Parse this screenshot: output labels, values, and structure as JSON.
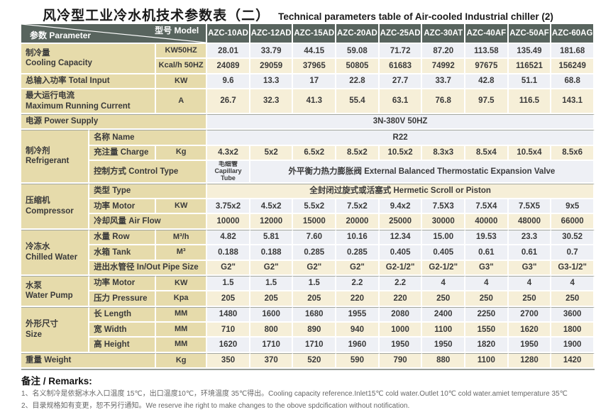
{
  "page": {
    "title_zh": "风冷型工业冷水机技术参数表（二）",
    "title_en": "Technical parameters table of Air-cooled Industrial chiller (2)"
  },
  "colors": {
    "header_bg": "#58645e",
    "label_bg": "#e6dbab",
    "row_light": "#eef0f5",
    "row_cream": "#f6efd8"
  },
  "table": {
    "corner": {
      "param_zh": "参数",
      "param_en": "Parameter",
      "model_zh": "型号",
      "model_en": "Model"
    },
    "models": [
      "AZC-10AD",
      "AZC-12AD",
      "AZC-15AD",
      "AZC-20AD",
      "AZC-25AD",
      "AZC-30AT",
      "AZC-40AF",
      "AZC-50AF",
      "AZC-60AG"
    ],
    "rows": [
      {
        "tint": "a",
        "sec": false,
        "cells": [
          {
            "t": "制冷量\nCooling Capacity",
            "cls": "label",
            "cs": 2,
            "rs": 2
          },
          {
            "t": "KW50HZ",
            "cls": "unit"
          },
          "28.01",
          "33.79",
          "44.15",
          "59.08",
          "71.72",
          "87.20",
          "113.58",
          "135.49",
          "181.68"
        ]
      },
      {
        "tint": "b",
        "sec": false,
        "cells": [
          {
            "t": "Kcal/h 50HZ",
            "cls": "unit"
          },
          "24089",
          "29059",
          "37965",
          "50805",
          "61683",
          "74992",
          "97675",
          "116521",
          "156249"
        ]
      },
      {
        "tint": "a",
        "sec": false,
        "cells": [
          {
            "t": "总输入功率 Total Input",
            "cls": "label",
            "cs": 2
          },
          {
            "t": "KW",
            "cls": "unit"
          },
          "9.6",
          "13.3",
          "17",
          "22.8",
          "27.7",
          "33.7",
          "42.8",
          "51.1",
          "68.8"
        ]
      },
      {
        "tint": "b",
        "sec": false,
        "cells": [
          {
            "t": "最大运行电流\nMaximum Running Current",
            "cls": "label",
            "cs": 2
          },
          {
            "t": "A",
            "cls": "unit"
          },
          "26.7",
          "32.3",
          "41.3",
          "55.4",
          "63.1",
          "76.8",
          "97.5",
          "116.5",
          "143.1"
        ]
      },
      {
        "tint": "a",
        "sec": true,
        "cells": [
          {
            "t": "电源 Power Supply",
            "cls": "label",
            "cs": 3
          },
          {
            "t": "3N-380V 50HZ",
            "cls": "data",
            "cs": 9
          }
        ]
      },
      {
        "tint": "a",
        "sec": true,
        "cells": [
          {
            "t": "制冷剂\nRefrigerant",
            "cls": "group",
            "rs": 3
          },
          {
            "t": "名称 Name",
            "cls": "sub",
            "cs": 2
          },
          {
            "t": "R22",
            "cls": "data",
            "cs": 9
          }
        ]
      },
      {
        "tint": "b",
        "sec": false,
        "cells": [
          {
            "t": "充注量 Charge",
            "cls": "sub"
          },
          {
            "t": "Kg",
            "cls": "unit"
          },
          "4.3x2",
          "5x2",
          "6.5x2",
          "8.5x2",
          "10.5x2",
          "8.3x3",
          "8.5x4",
          "10.5x4",
          "8.5x6"
        ]
      },
      {
        "tint": "a",
        "sec": false,
        "cells": [
          {
            "t": "控制方式 Control Type",
            "cls": "sub",
            "cs": 2
          },
          {
            "t": "毛细管\nCapillary Tube",
            "cls": "data small"
          },
          {
            "t": "外平衡力热力膨胀阀 External Balanced Thermostatic Expansion Valve",
            "cls": "data",
            "cs": 8
          }
        ]
      },
      {
        "tint": "b",
        "sec": true,
        "cells": [
          {
            "t": "压缩机\nCompressor",
            "cls": "group",
            "rs": 3
          },
          {
            "t": "类型 Type",
            "cls": "sub",
            "cs": 2
          },
          {
            "t": "全封闭过旋式或活塞式 Hermetic Scroll or Piston",
            "cls": "data",
            "cs": 9
          }
        ]
      },
      {
        "tint": "a",
        "sec": false,
        "cells": [
          {
            "t": "功率 Motor",
            "cls": "sub"
          },
          {
            "t": "KW",
            "cls": "unit"
          },
          "3.75x2",
          "4.5x2",
          "5.5x2",
          "7.5x2",
          "9.4x2",
          "7.5X3",
          "7.5X4",
          "7.5X5",
          "9x5"
        ]
      },
      {
        "tint": "b",
        "sec": false,
        "cells": [
          {
            "t": "冷却风量 Air Flow",
            "cls": "sub",
            "cs": 2
          },
          "10000",
          "12000",
          "15000",
          "20000",
          "25000",
          "30000",
          "40000",
          "48000",
          "66000"
        ]
      },
      {
        "tint": "a",
        "sec": true,
        "cells": [
          {
            "t": "冷冻水\nChilled Water",
            "cls": "group",
            "rs": 3
          },
          {
            "t": "水量 Row",
            "cls": "sub"
          },
          {
            "t": "M³/h",
            "cls": "unit"
          },
          "4.82",
          "5.81",
          "7.60",
          "10.16",
          "12.34",
          "15.00",
          "19.53",
          "23.3",
          "30.52"
        ]
      },
      {
        "tint": "a",
        "sec": false,
        "cells": [
          {
            "t": "水箱 Tank",
            "cls": "sub"
          },
          {
            "t": "M³",
            "cls": "unit"
          },
          "0.188",
          "0.188",
          "0.285",
          "0.285",
          "0.405",
          "0.405",
          "0.61",
          "0.61",
          "0.7"
        ]
      },
      {
        "tint": "b",
        "sec": false,
        "cells": [
          {
            "t": "进出水管径 In/Out Pipe Size",
            "cls": "sub",
            "cs": 2
          },
          "G2\"",
          "G2\"",
          "G2\"",
          "G2\"",
          "G2-1/2\"",
          "G2-1/2\"",
          "G3\"",
          "G3\"",
          "G3-1/2\""
        ]
      },
      {
        "tint": "a",
        "sec": true,
        "cells": [
          {
            "t": "水泵\nWater Pump",
            "cls": "group",
            "rs": 2
          },
          {
            "t": "功率 Motor",
            "cls": "sub"
          },
          {
            "t": "KW",
            "cls": "unit"
          },
          "1.5",
          "1.5",
          "1.5",
          "2.2",
          "2.2",
          "4",
          "4",
          "4",
          "4"
        ]
      },
      {
        "tint": "b",
        "sec": false,
        "cells": [
          {
            "t": "压力 Pressure",
            "cls": "sub"
          },
          {
            "t": "Kpa",
            "cls": "unit"
          },
          "205",
          "205",
          "205",
          "220",
          "220",
          "250",
          "250",
          "250",
          "250"
        ]
      },
      {
        "tint": "a",
        "sec": true,
        "cells": [
          {
            "t": "外形尺寸\nSize",
            "cls": "group",
            "rs": 3
          },
          {
            "t": "长 Length",
            "cls": "sub"
          },
          {
            "t": "MM",
            "cls": "unit"
          },
          "1480",
          "1600",
          "1680",
          "1955",
          "2080",
          "2400",
          "2250",
          "2700",
          "3600"
        ]
      },
      {
        "tint": "b",
        "sec": false,
        "cells": [
          {
            "t": "宽 Width",
            "cls": "sub"
          },
          {
            "t": "MM",
            "cls": "unit"
          },
          "710",
          "800",
          "890",
          "940",
          "1000",
          "1100",
          "1550",
          "1620",
          "1800"
        ]
      },
      {
        "tint": "a",
        "sec": false,
        "cells": [
          {
            "t": "高 Height",
            "cls": "sub"
          },
          {
            "t": "MM",
            "cls": "unit"
          },
          "1620",
          "1710",
          "1710",
          "1960",
          "1950",
          "1950",
          "1820",
          "1950",
          "1900"
        ]
      },
      {
        "tint": "b",
        "sec": true,
        "cells": [
          {
            "t": "重量 Weight",
            "cls": "label",
            "cs": 2
          },
          {
            "t": "Kg",
            "cls": "unit"
          },
          "350",
          "370",
          "520",
          "590",
          "790",
          "880",
          "1100",
          "1280",
          "1420"
        ]
      }
    ]
  },
  "remarks": {
    "title": "备注 / Remarks:",
    "lines": [
      "1、名义制冷是依据冰水入口温度 15℃，出口温度10℃，环境温度 35℃得出。Cooling capacity reference.Inlet15℃ cold water.Outlet 10℃ cold water.amiet temperature 35℃",
      "2、目录规格如有变更，恕不另行通知。We reserve ihe right to make changes to the obove spdcification without notification."
    ]
  }
}
